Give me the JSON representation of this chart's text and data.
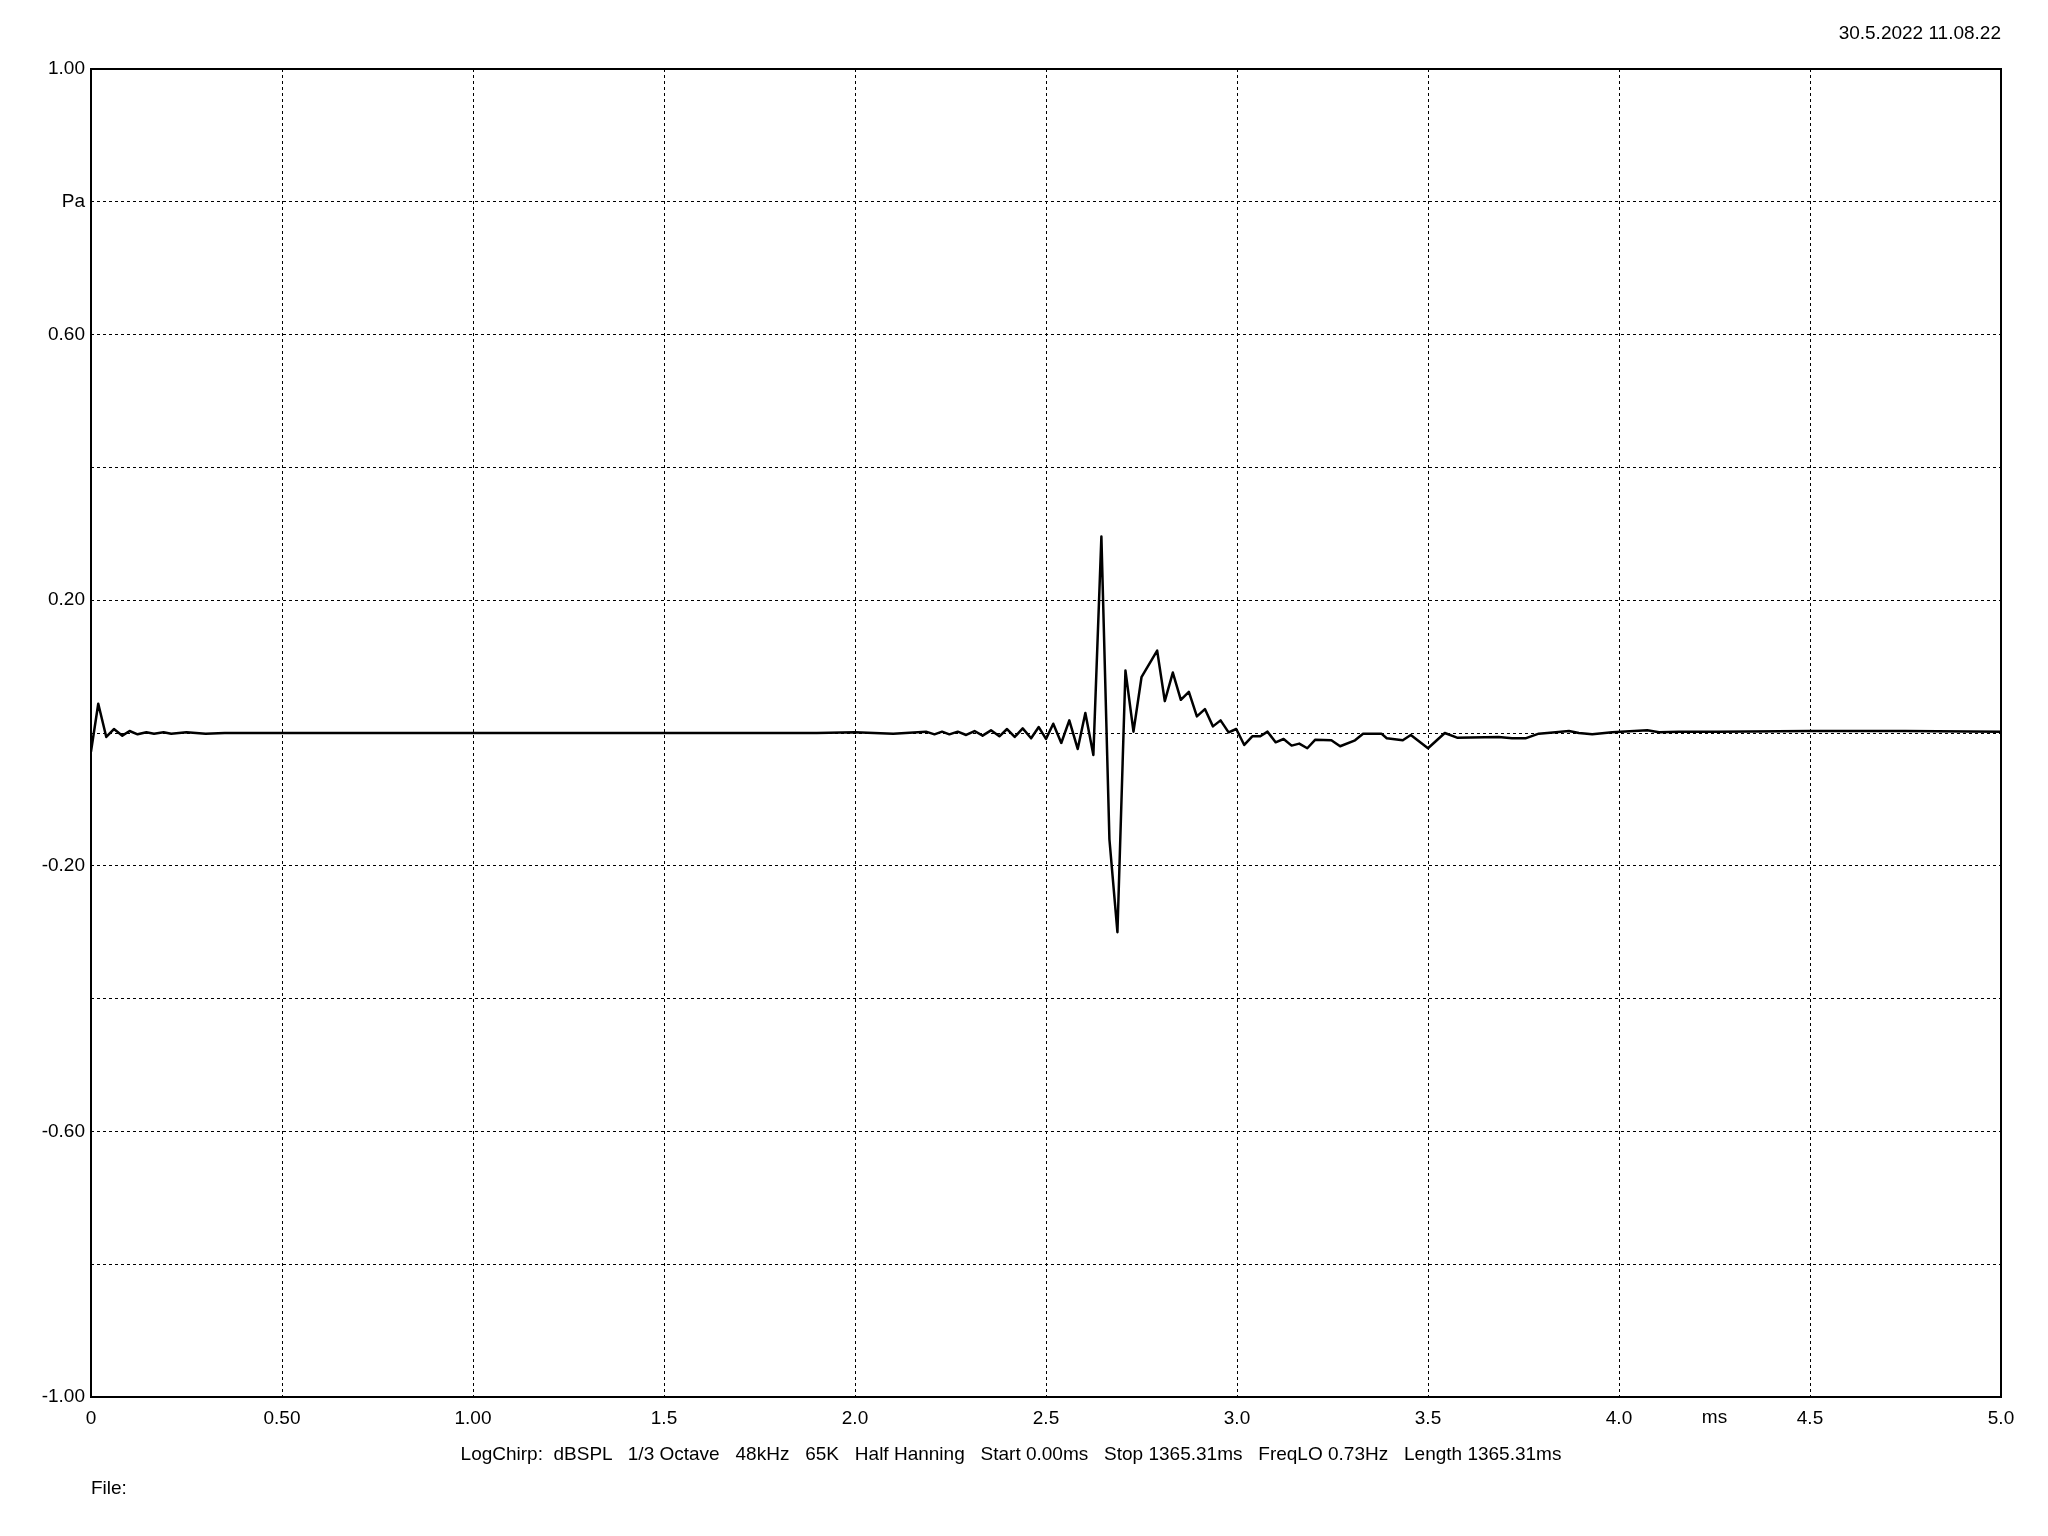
{
  "chart_data": {
    "type": "line",
    "annotations": [
      "30.5.2022 11.08.22",
      "LogChirp:  dBSPL   1/3 Octave   48kHz   65K   Half Hanning   Start 0.00ms   Stop 1365.31ms   FreqLO 0.73Hz   Length 1365.31ms",
      "File:"
    ],
    "xlabel": "ms",
    "ylabel": "Pa",
    "color": "#000000",
    "marker": "none",
    "line_style": "solid",
    "grid": true,
    "xlim": [
      0,
      5
    ],
    "ylim": [
      -1,
      1
    ],
    "xticks": [
      0,
      {
        "value": 0.5,
        "label": "0.50"
      },
      {
        "value": 1,
        "label": "1.00"
      },
      1.5,
      {
        "value": 2,
        "label": "2.0"
      },
      2.5,
      {
        "value": 3,
        "label": "3.0"
      },
      3.5,
      {
        "value": 4,
        "label": "4.0"
      },
      4.5,
      {
        "value": 5,
        "label": "5.0"
      }
    ],
    "yticks": [
      {
        "value": -1,
        "label": "-1.00"
      },
      {
        "value": -0.8,
        "label": null
      },
      {
        "value": -0.6,
        "label": "-0.60"
      },
      {
        "value": -0.4,
        "label": null
      },
      {
        "value": -0.2,
        "label": "-0.20"
      },
      {
        "value": 0,
        "label": null
      },
      {
        "value": 0.2,
        "label": "0.20"
      },
      {
        "value": 0.4,
        "label": null
      },
      {
        "value": 0.6,
        "label": "0.60"
      },
      {
        "value": 0.8,
        "label": null
      },
      {
        "value": 1,
        "label": "1.00"
      }
    ],
    "x": [
      0,
      0.019,
      0.04,
      0.06,
      0.082,
      0.101,
      0.122,
      0.145,
      0.165,
      0.19,
      0.21,
      0.25,
      0.3,
      0.35,
      1.0,
      1.9,
      2.0,
      2.1,
      2.186,
      2.208,
      2.228,
      2.247,
      2.269,
      2.291,
      2.313,
      2.334,
      2.356,
      2.378,
      2.398,
      2.418,
      2.439,
      2.461,
      2.481,
      2.5,
      2.519,
      2.54,
      2.561,
      2.583,
      2.603,
      2.624,
      2.645,
      2.666,
      2.687,
      2.708,
      2.729,
      2.75,
      2.791,
      2.811,
      2.832,
      2.853,
      2.874,
      2.895,
      2.916,
      2.937,
      2.957,
      2.978,
      2.998,
      3.019,
      3.04,
      3.061,
      3.08,
      3.101,
      3.122,
      3.143,
      3.163,
      3.184,
      3.205,
      3.247,
      3.27,
      3.309,
      3.33,
      3.378,
      3.392,
      3.434,
      3.455,
      3.5,
      3.544,
      3.576,
      3.685,
      3.72,
      3.755,
      3.79,
      3.834,
      3.869,
      3.895,
      3.93,
      3.982,
      4.074,
      4.105,
      4.157,
      4.21,
      4.258,
      4.5,
      4.75,
      5.0
    ],
    "values": [
      -0.028,
      0.044,
      -0.006,
      0.006,
      -0.004,
      0.003,
      -0.002,
      0.001,
      -0.001,
      0.001,
      -0.001,
      0.001,
      -0.001,
      0,
      0,
      0,
      0.001,
      -0.001,
      0.002,
      -0.002,
      0.002,
      -0.002,
      0.002,
      -0.003,
      0.003,
      -0.004,
      0.004,
      -0.005,
      0.006,
      -0.006,
      0.007,
      -0.008,
      0.009,
      -0.009,
      0.014,
      -0.015,
      0.019,
      -0.024,
      0.03,
      -0.033,
      0.296,
      -0.16,
      -0.3,
      0.094,
      0.002,
      0.084,
      0.124,
      0.048,
      0.091,
      0.05,
      0.062,
      0.025,
      0.036,
      0.01,
      0.019,
      0.001,
      0.006,
      -0.018,
      -0.005,
      -0.005,
      0.002,
      -0.014,
      -0.009,
      -0.019,
      -0.016,
      -0.023,
      -0.01,
      -0.011,
      -0.02,
      -0.011,
      -0.001,
      -0.001,
      -0.008,
      -0.011,
      -0.003,
      -0.023,
      0,
      -0.007,
      -0.006,
      -0.008,
      -0.008,
      -0.001,
      0.001,
      0.003,
      0,
      -0.002,
      0.001,
      0.004,
      0.001,
      0.002,
      0.002,
      0.002,
      0.003,
      0.003,
      0.002
    ]
  }
}
